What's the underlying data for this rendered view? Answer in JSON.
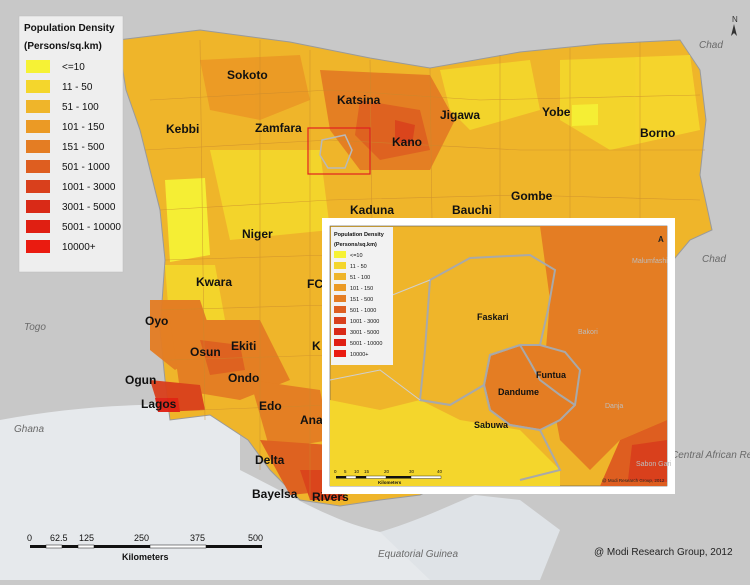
{
  "legend": {
    "title": "Population Density",
    "subtitle": "(Persons/sq.km)",
    "classes": [
      {
        "label": "<=10",
        "color": "#f6f235"
      },
      {
        "label": "11 - 50",
        "color": "#f4d62c"
      },
      {
        "label": "51 - 100",
        "color": "#efb52a"
      },
      {
        "label": "101 - 150",
        "color": "#eb9a25"
      },
      {
        "label": "151 - 500",
        "color": "#e47d23"
      },
      {
        "label": "501 - 1000",
        "color": "#de5e20"
      },
      {
        "label": "1001 - 3000",
        "color": "#d9401c"
      },
      {
        "label": "3001 - 5000",
        "color": "#d92a17"
      },
      {
        "label": "5001 - 10000",
        "color": "#e01f12"
      },
      {
        "label": "10000+",
        "color": "#ea1b10"
      }
    ]
  },
  "states": [
    "Sokoto",
    "Katsina",
    "Jigawa",
    "Yobe",
    "Borno",
    "Kebbi",
    "Zamfara",
    "Kano",
    "Gombe",
    "Kaduna",
    "Bauchi",
    "Niger",
    "Kwara",
    "FC",
    "Oyo",
    "Osun",
    "Ekiti",
    "Ogun",
    "Ondo",
    "K",
    "Lagos",
    "Edo",
    "Ana",
    "Delta",
    "Bayelsa",
    "Rivers"
  ],
  "countries": [
    "Chad",
    "Chad",
    "Togo",
    "Ghana",
    "Equatorial Guinea",
    "Central African Republic"
  ],
  "north_arrow": "N",
  "scale_bar": {
    "ticks": [
      "0",
      "62.5",
      "125",
      "250",
      "375",
      "500"
    ],
    "unit": "Kilometers"
  },
  "credit": "@ Modi Research Group, 2012",
  "inset": {
    "legend_title": "Population Density",
    "legend_subtitle": "(Persons/sq.km)",
    "legend_labels": [
      "<=10",
      "11 - 50",
      "51 - 100",
      "101 - 150",
      "151 - 500",
      "501 - 1000",
      "1001 - 3000",
      "3001 - 5000",
      "5001 - 10000",
      "10000+"
    ],
    "places": [
      "Faskari",
      "Funtua",
      "Dandume",
      "Sabuwa"
    ],
    "faint_places": [
      "Malumfashi",
      "Bakori",
      "Danja",
      "Sabon Gari"
    ],
    "scale_ticks": [
      "0",
      "5",
      "10",
      "15",
      "20",
      "30",
      "40"
    ],
    "scale_unit": "Kilometers",
    "credit": "@ Modi Research Group, 2012",
    "north": "A"
  }
}
